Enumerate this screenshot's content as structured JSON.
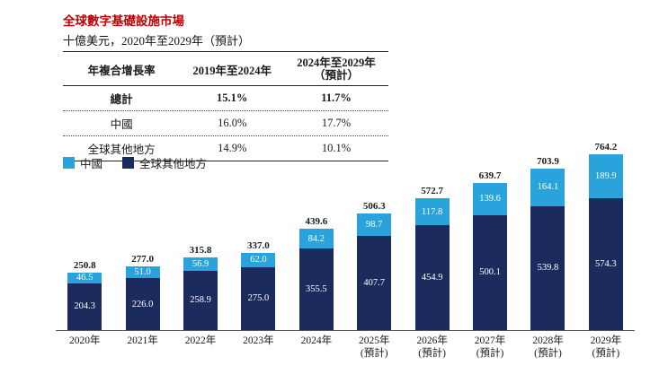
{
  "title": "全球數字基礎設施市場",
  "subtitle": "十億美元，2020年至2029年（預計）",
  "colors": {
    "china": "#2aa3dc",
    "rest": "#1c2b5e",
    "title_red": "#c00000"
  },
  "table": {
    "headers": {
      "col1": "年複合增長率",
      "col2": "2019年至2024年",
      "col3_line1": "2024年至2029年",
      "col3_line2": "（預計）"
    },
    "rows": [
      {
        "label": "總計",
        "v2019_2024": "15.1%",
        "v2024_2029": "11.7%",
        "bold": true
      },
      {
        "label": "中國",
        "v2019_2024": "16.0%",
        "v2024_2029": "17.7%",
        "bold": false
      },
      {
        "label": "全球其他地方",
        "v2019_2024": "14.9%",
        "v2024_2029": "10.1%",
        "bold": false
      }
    ]
  },
  "legend": [
    {
      "label": "中國",
      "color": "#2aa3dc"
    },
    {
      "label": "全球其他地方",
      "color": "#1c2b5e"
    }
  ],
  "chart_data": {
    "type": "bar",
    "stacked": true,
    "title": "全球數字基礎設施市場",
    "ylabel": "十億美元",
    "categories": [
      {
        "year": "2020年",
        "note": ""
      },
      {
        "year": "2021年",
        "note": ""
      },
      {
        "year": "2022年",
        "note": ""
      },
      {
        "year": "2023年",
        "note": ""
      },
      {
        "year": "2024年",
        "note": ""
      },
      {
        "year": "2025年",
        "note": "(預計)"
      },
      {
        "year": "2026年",
        "note": "(預計)"
      },
      {
        "year": "2027年",
        "note": "(預計)"
      },
      {
        "year": "2028年",
        "note": "(預計)"
      },
      {
        "year": "2029年",
        "note": "(預計)"
      }
    ],
    "series": [
      {
        "name": "中國",
        "color": "#2aa3dc",
        "values": [
          "46.5",
          "51.0",
          "56.9",
          "62.0",
          "84.2",
          "98.7",
          "117.8",
          "139.6",
          "164.1",
          "189.9"
        ]
      },
      {
        "name": "全球其他地方",
        "color": "#1c2b5e",
        "values": [
          "204.3",
          "226.0",
          "258.9",
          "275.0",
          "355.5",
          "407.7",
          "454.9",
          "500.1",
          "539.8",
          "574.3"
        ]
      }
    ],
    "totals": [
      "250.8",
      "277.0",
      "315.8",
      "337.0",
      "439.6",
      "506.3",
      "572.7",
      "639.7",
      "703.9",
      "764.2"
    ],
    "ylim": [
      0,
      800
    ],
    "grid": false,
    "legend_position": "top-left"
  }
}
